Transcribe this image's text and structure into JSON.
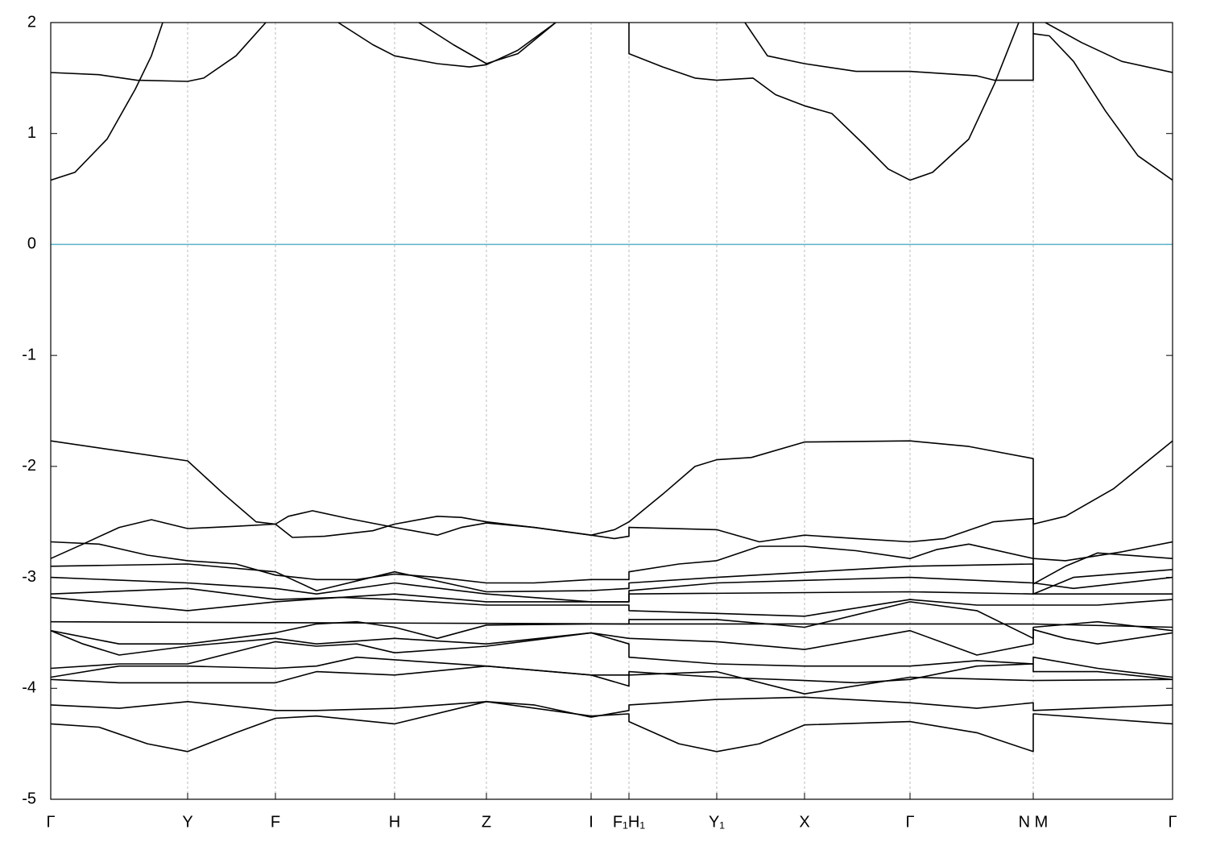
{
  "chart_data": {
    "type": "line",
    "color": "#000000",
    "xgrid": true,
    "hline": 0,
    "hline_color": "#5ab4c8",
    "xlim": [
      0,
      1393
    ],
    "ylim": [
      -5,
      2
    ],
    "yticks": [
      2,
      1,
      0,
      -1,
      -2,
      -3,
      -4,
      -5
    ],
    "xticks": [
      {
        "value": 0,
        "label": "Γ"
      },
      {
        "value": 170,
        "label": "Y"
      },
      {
        "value": 279,
        "label": "F"
      },
      {
        "value": 427,
        "label": "H"
      },
      {
        "value": 541,
        "label": "Z"
      },
      {
        "value": 671,
        "label": "I"
      },
      {
        "value": 718,
        "label": "F₁H₁"
      },
      {
        "value": 827,
        "label": "Y₁"
      },
      {
        "value": 936,
        "label": "X"
      },
      {
        "value": 1067,
        "label": "Γ"
      },
      {
        "value": 1220,
        "label": "N M"
      },
      {
        "value": 1393,
        "label": "Γ"
      }
    ],
    "series": [
      {
        "x": [
          0,
          30,
          70,
          105,
          125,
          140
        ],
        "values": [
          0.58,
          0.65,
          0.95,
          1.4,
          1.7,
          2.02
        ]
      },
      {
        "x": [
          0,
          60,
          107,
          170,
          190,
          230,
          267
        ],
        "values": [
          1.55,
          1.53,
          1.48,
          1.47,
          1.5,
          1.7,
          2.0
        ]
      },
      {
        "x": [
          357,
          400,
          427,
          480,
          520,
          541,
          580,
          627
        ],
        "values": [
          2.0,
          1.8,
          1.7,
          1.63,
          1.6,
          1.62,
          1.75,
          2.0
        ]
      },
      {
        "x": [
          457,
          500,
          541,
          580,
          627
        ],
        "values": [
          2.0,
          1.8,
          1.63,
          1.72,
          2.0
        ]
      },
      {
        "x": [
          718,
          718,
          760,
          800,
          827,
          872,
          900,
          936,
          970,
          1010,
          1040,
          1067,
          1095,
          1140,
          1172,
          1202
        ],
        "values": [
          2.0,
          1.72,
          1.6,
          1.5,
          1.48,
          1.5,
          1.35,
          1.25,
          1.18,
          0.9,
          0.68,
          0.58,
          0.65,
          0.95,
          1.45,
          2.0
        ]
      },
      {
        "x": [
          862,
          890,
          936,
          1000,
          1067,
          1150,
          1172,
          1220,
          1220
        ],
        "values": [
          2.0,
          1.7,
          1.63,
          1.56,
          1.56,
          1.52,
          1.48,
          1.48,
          2.0
        ]
      },
      {
        "x": [
          1220,
          1240,
          1270,
          1310,
          1350,
          1393
        ],
        "values": [
          1.9,
          1.88,
          1.65,
          1.2,
          0.8,
          0.58
        ]
      },
      {
        "x": [
          1235,
          1280,
          1330,
          1393
        ],
        "values": [
          2.0,
          1.82,
          1.65,
          1.55
        ]
      },
      {
        "x": [
          0,
          85,
          170,
          215,
          255,
          279,
          295,
          325,
          370,
          427,
          480,
          510,
          541,
          600,
          671,
          700,
          718,
          760,
          800,
          827,
          870,
          936,
          1067,
          1140,
          1220,
          1220,
          1260,
          1320,
          1393
        ],
        "values": [
          -1.77,
          -1.86,
          -1.95,
          -2.25,
          -2.5,
          -2.52,
          -2.45,
          -2.4,
          -2.47,
          -2.55,
          -2.62,
          -2.55,
          -2.51,
          -2.55,
          -2.62,
          -2.57,
          -2.5,
          -2.25,
          -2.0,
          -1.94,
          -1.92,
          -1.78,
          -1.77,
          -1.82,
          -1.93,
          -2.52,
          -2.45,
          -2.2,
          -1.77
        ]
      },
      {
        "x": [
          0,
          40,
          85,
          125,
          170,
          230,
          279,
          300,
          340,
          400,
          427,
          480,
          510,
          541,
          600,
          671,
          700,
          718,
          718,
          827,
          880,
          936,
          1000,
          1067,
          1110,
          1170,
          1220,
          1220,
          1260,
          1330,
          1393
        ],
        "values": [
          -2.83,
          -2.7,
          -2.55,
          -2.48,
          -2.56,
          -2.54,
          -2.52,
          -2.64,
          -2.63,
          -2.58,
          -2.52,
          -2.45,
          -2.46,
          -2.5,
          -2.55,
          -2.62,
          -2.65,
          -2.63,
          -2.55,
          -2.57,
          -2.68,
          -2.62,
          -2.65,
          -2.68,
          -2.65,
          -2.5,
          -2.47,
          -2.83,
          -2.85,
          -2.77,
          -2.68
        ]
      },
      {
        "x": [
          0,
          60,
          120,
          170,
          230,
          279,
          330,
          380,
          427,
          480,
          541,
          600,
          671,
          718,
          718,
          780,
          827,
          880,
          936,
          1000,
          1067,
          1100,
          1140,
          1220,
          1220,
          1260,
          1300,
          1393
        ],
        "values": [
          -2.68,
          -2.7,
          -2.8,
          -2.85,
          -2.88,
          -2.98,
          -3.02,
          -3.02,
          -2.97,
          -3.0,
          -3.05,
          -3.05,
          -3.02,
          -3.02,
          -2.95,
          -2.88,
          -2.85,
          -2.72,
          -2.72,
          -2.76,
          -2.83,
          -2.75,
          -2.7,
          -2.83,
          -3.06,
          -2.9,
          -2.78,
          -2.83
        ]
      },
      {
        "x": [
          0,
          170,
          279,
          330,
          427,
          541,
          671,
          718,
          718,
          827,
          1067,
          1220,
          1220,
          1270,
          1393
        ],
        "values": [
          -2.9,
          -2.88,
          -2.95,
          -3.12,
          -2.95,
          -3.13,
          -3.12,
          -3.1,
          -3.05,
          -3.0,
          -2.9,
          -2.88,
          -3.15,
          -3.0,
          -2.93
        ]
      },
      {
        "x": [
          0,
          170,
          279,
          330,
          427,
          541,
          671,
          718,
          718,
          827,
          1067,
          1220,
          1270,
          1393
        ],
        "values": [
          -3.0,
          -3.05,
          -3.1,
          -3.15,
          -3.05,
          -3.15,
          -3.22,
          -3.22,
          -3.12,
          -3.05,
          -3.0,
          -3.05,
          -3.1,
          -3.0
        ]
      },
      {
        "x": [
          0,
          170,
          279,
          360,
          427,
          541,
          718,
          718,
          1067,
          1220,
          1393
        ],
        "values": [
          -3.15,
          -3.1,
          -3.2,
          -3.18,
          -3.15,
          -3.22,
          -3.22,
          -3.15,
          -3.13,
          -3.15,
          -3.15
        ]
      },
      {
        "x": [
          0,
          170,
          279,
          360,
          427,
          541,
          718,
          718,
          936,
          1067,
          1150,
          1220,
          1300,
          1393
        ],
        "values": [
          -3.18,
          -3.3,
          -3.22,
          -3.18,
          -3.2,
          -3.25,
          -3.25,
          -3.3,
          -3.35,
          -3.2,
          -3.25,
          -3.25,
          -3.25,
          -3.2
        ]
      },
      {
        "x": [
          0,
          718,
          1220,
          1393
        ],
        "values": [
          -3.4,
          -3.42,
          -3.42,
          -3.45
        ]
      },
      {
        "x": [
          0,
          85,
          170,
          279,
          330,
          380,
          427,
          480,
          541,
          671,
          718,
          718,
          827,
          936,
          1067,
          1150,
          1220,
          1220,
          1300,
          1393
        ],
        "values": [
          -3.48,
          -3.6,
          -3.6,
          -3.5,
          -3.42,
          -3.4,
          -3.45,
          -3.55,
          -3.43,
          -3.42,
          -3.42,
          -3.38,
          -3.38,
          -3.45,
          -3.22,
          -3.3,
          -3.55,
          -3.45,
          -3.4,
          -3.48
        ]
      },
      {
        "x": [
          0,
          40,
          85,
          170,
          279,
          330,
          427,
          541,
          671,
          718,
          827,
          936,
          1067,
          1150,
          1220,
          1220,
          1260,
          1300,
          1393
        ],
        "values": [
          -3.48,
          -3.6,
          -3.7,
          -3.62,
          -3.55,
          -3.6,
          -3.55,
          -3.6,
          -3.5,
          -3.55,
          -3.58,
          -3.65,
          -3.48,
          -3.7,
          -3.6,
          -3.47,
          -3.55,
          -3.6,
          -3.5
        ]
      },
      {
        "x": [
          0,
          85,
          170,
          279,
          330,
          380,
          427,
          541,
          671,
          718,
          718,
          827,
          936,
          1067,
          1150,
          1220,
          1220,
          1300,
          1393
        ],
        "values": [
          -3.82,
          -3.78,
          -3.78,
          -3.58,
          -3.62,
          -3.6,
          -3.68,
          -3.62,
          -3.5,
          -3.6,
          -3.72,
          -3.78,
          -3.8,
          -3.8,
          -3.75,
          -3.78,
          -3.72,
          -3.82,
          -3.9
        ]
      },
      {
        "x": [
          0,
          85,
          170,
          279,
          330,
          380,
          541,
          671,
          718,
          718,
          827,
          936,
          1000,
          1067,
          1150,
          1220,
          1220,
          1300,
          1393
        ],
        "values": [
          -3.9,
          -3.8,
          -3.8,
          -3.82,
          -3.8,
          -3.72,
          -3.8,
          -3.88,
          -3.98,
          -3.85,
          -3.9,
          -3.93,
          -3.95,
          -3.92,
          -3.8,
          -3.78,
          -3.85,
          -3.85,
          -3.92
        ]
      },
      {
        "x": [
          0,
          85,
          170,
          279,
          330,
          427,
          541,
          671,
          718,
          827,
          936,
          1067,
          1220,
          1393
        ],
        "values": [
          -3.92,
          -3.95,
          -3.95,
          -3.95,
          -3.85,
          -3.88,
          -3.8,
          -3.88,
          -3.88,
          -3.85,
          -4.05,
          -3.9,
          -3.93,
          -3.92
        ]
      },
      {
        "x": [
          0,
          85,
          170,
          279,
          330,
          427,
          541,
          600,
          671,
          718,
          718,
          827,
          936,
          1067,
          1150,
          1220,
          1220,
          1393
        ],
        "values": [
          -4.15,
          -4.18,
          -4.12,
          -4.2,
          -4.2,
          -4.18,
          -4.12,
          -4.15,
          -4.26,
          -4.2,
          -4.15,
          -4.1,
          -4.08,
          -4.13,
          -4.18,
          -4.13,
          -4.2,
          -4.15
        ]
      },
      {
        "x": [
          0,
          60,
          120,
          170,
          230,
          279,
          330,
          427,
          541,
          671,
          718,
          718,
          780,
          827,
          880,
          936,
          1067,
          1150,
          1220,
          1220,
          1393
        ],
        "values": [
          -4.32,
          -4.35,
          -4.5,
          -4.57,
          -4.4,
          -4.27,
          -4.25,
          -4.32,
          -4.12,
          -4.25,
          -4.23,
          -4.3,
          -4.5,
          -4.57,
          -4.5,
          -4.33,
          -4.3,
          -4.4,
          -4.57,
          -4.23,
          -4.32
        ]
      }
    ]
  }
}
